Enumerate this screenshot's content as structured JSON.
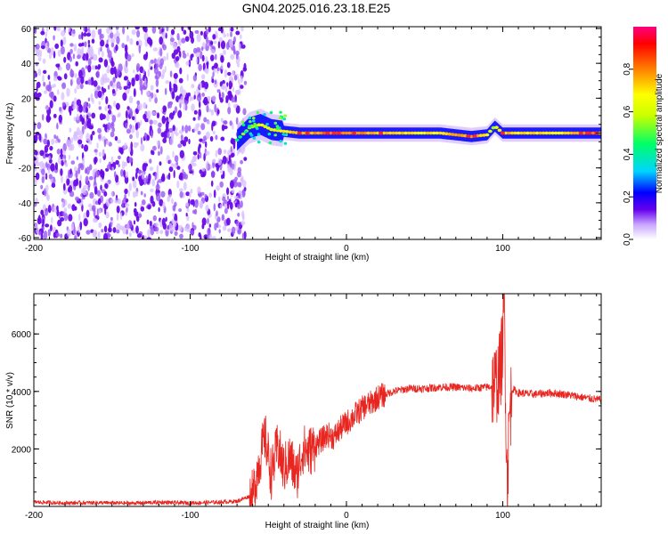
{
  "title": "GN04.2025.016.23.18.E25",
  "chart_data": [
    {
      "type": "heatmap",
      "xlabel": "Height of straight line (km)",
      "ylabel": "Frequency (Hz)",
      "xlim": [
        -200,
        163
      ],
      "ylim": [
        -61,
        61
      ],
      "xticks": [
        -200,
        -100,
        0,
        100
      ],
      "yticks": [
        60,
        40,
        20,
        0,
        -20,
        -40,
        -60
      ],
      "colorbar": {
        "label": "Normalized spectral amplitude",
        "range": [
          0,
          1
        ],
        "ticks": [
          0.0,
          0.2,
          0.4,
          0.6,
          0.8
        ],
        "tick_labels": [
          "0.0",
          "0.2",
          "0.4",
          "0.6",
          "0.8"
        ],
        "colormap": [
          "#ffffff",
          "#c9a6ff",
          "#6600ee",
          "#0000ff",
          "#00d5ff",
          "#00ff66",
          "#c8ff00",
          "#ffff00",
          "#ff8000",
          "#ff0000",
          "#ff0080"
        ]
      },
      "noise_region_x": [
        -200,
        -68
      ],
      "signal_ridge": [
        {
          "x": -70,
          "f": -4,
          "amp": 0.45
        },
        {
          "x": -62,
          "f": 3,
          "amp": 0.6
        },
        {
          "x": -55,
          "f": 5,
          "amp": 0.65
        },
        {
          "x": -48,
          "f": 2,
          "amp": 0.7
        },
        {
          "x": -40,
          "f": 1,
          "amp": 0.75
        },
        {
          "x": -30,
          "f": 0,
          "amp": 0.85
        },
        {
          "x": -20,
          "f": 0,
          "amp": 0.85
        },
        {
          "x": -10,
          "f": 0,
          "amp": 0.9
        },
        {
          "x": 0,
          "f": 0,
          "amp": 0.9
        },
        {
          "x": 20,
          "f": 0,
          "amp": 0.8
        },
        {
          "x": 40,
          "f": 0,
          "amp": 0.75
        },
        {
          "x": 60,
          "f": 0,
          "amp": 0.75
        },
        {
          "x": 80,
          "f": -2,
          "amp": 0.9
        },
        {
          "x": 90,
          "f": -1,
          "amp": 0.7
        },
        {
          "x": 95,
          "f": 4,
          "amp": 0.6
        },
        {
          "x": 100,
          "f": 0,
          "amp": 0.8
        },
        {
          "x": 120,
          "f": 0,
          "amp": 0.75
        },
        {
          "x": 140,
          "f": 0,
          "amp": 0.75
        },
        {
          "x": 155,
          "f": 0,
          "amp": 0.95
        },
        {
          "x": 163,
          "f": 0,
          "amp": 0.85
        }
      ]
    },
    {
      "type": "line",
      "xlabel": "Height of straight line (km)",
      "ylabel": "SNR (10 * v/v)",
      "xlim": [
        -200,
        163
      ],
      "ylim": [
        0,
        7400
      ],
      "xticks": [
        -200,
        -100,
        0,
        100
      ],
      "yticks": [
        2000,
        4000,
        6000
      ],
      "color": "#e8251f",
      "series": [
        {
          "x": [
            -200,
            -180,
            -160,
            -140,
            -120,
            -100,
            -80,
            -70,
            -60,
            -56,
            -52,
            -48,
            -44,
            -40,
            -36,
            -32,
            -28,
            -24,
            -20,
            -16,
            -12,
            -8,
            -4,
            0,
            4,
            8,
            12,
            16,
            20,
            25,
            30,
            40,
            50,
            60,
            70,
            80,
            90,
            95,
            98,
            100,
            101,
            102,
            103,
            104,
            106,
            110,
            120,
            130,
            140,
            150,
            163
          ],
          "y": [
            150,
            120,
            130,
            110,
            140,
            120,
            150,
            180,
            400,
            1500,
            2400,
            1100,
            2100,
            1300,
            1700,
            1000,
            2000,
            1900,
            2100,
            2300,
            2500,
            2400,
            2700,
            2900,
            3100,
            3300,
            3500,
            3600,
            3800,
            3900,
            4000,
            4100,
            4100,
            4150,
            4150,
            4100,
            4150,
            4200,
            4600,
            5500,
            7300,
            3500,
            300,
            2900,
            4100,
            3950,
            3900,
            3950,
            3900,
            3800,
            3700
          ]
        }
      ]
    }
  ]
}
